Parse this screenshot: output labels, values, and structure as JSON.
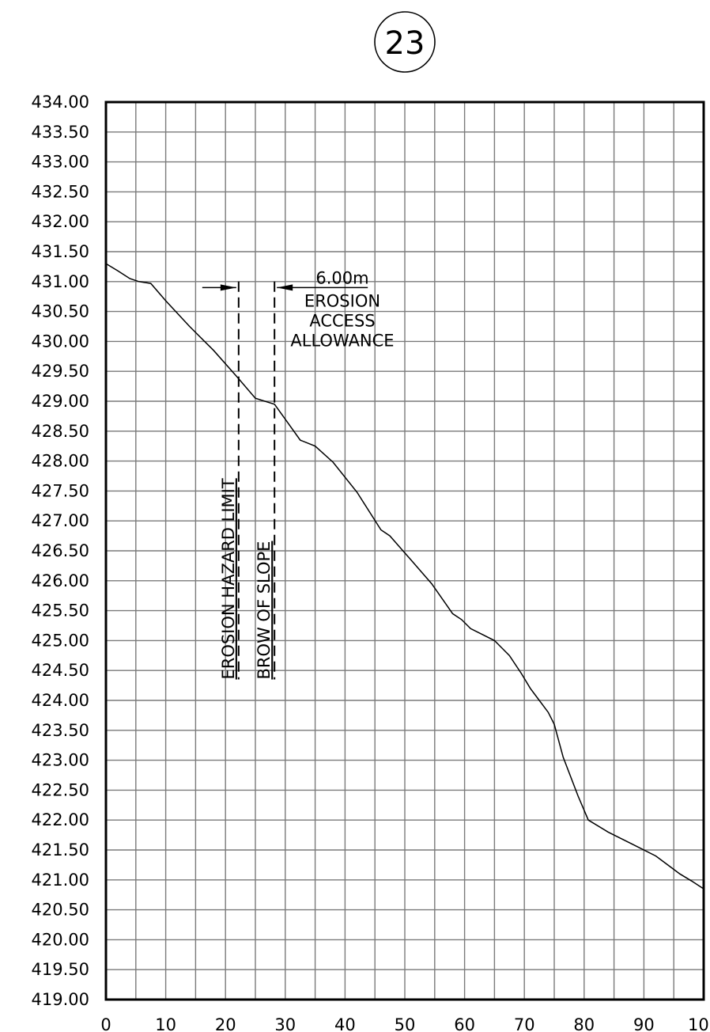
{
  "section_id": "23",
  "chart_data": {
    "type": "line",
    "title": "",
    "xlabel": "",
    "ylabel": "",
    "xlim": [
      0,
      100
    ],
    "ylim": [
      419.0,
      434.0
    ],
    "x_ticks": [
      0,
      10,
      20,
      30,
      40,
      50,
      60,
      70,
      80,
      90,
      100
    ],
    "x_tick_labels": [
      "0",
      "10",
      "20",
      "30",
      "40",
      "50",
      "60",
      "70",
      "80",
      "90",
      "100"
    ],
    "y_ticks": [
      419.0,
      419.5,
      420.0,
      420.5,
      421.0,
      421.5,
      422.0,
      422.5,
      423.0,
      423.5,
      424.0,
      424.5,
      425.0,
      425.5,
      426.0,
      426.5,
      427.0,
      427.5,
      428.0,
      428.5,
      429.0,
      429.5,
      430.0,
      430.5,
      431.0,
      431.5,
      432.0,
      432.5,
      433.0,
      433.5,
      434.0
    ],
    "y_tick_labels": [
      "419.00",
      "419.50",
      "420.00",
      "420.50",
      "421.00",
      "421.50",
      "422.00",
      "422.50",
      "423.00",
      "423.50",
      "424.00",
      "424.50",
      "425.00",
      "425.50",
      "426.00",
      "426.50",
      "427.00",
      "427.50",
      "428.00",
      "428.50",
      "429.00",
      "429.50",
      "430.00",
      "430.50",
      "431.00",
      "431.50",
      "432.00",
      "432.50",
      "433.00",
      "433.50",
      "434.00"
    ],
    "grid": true,
    "grid_step_x": 5,
    "grid_step_y": 0.5,
    "series": [
      {
        "x": [
          0,
          2,
          4,
          5.5,
          7.5,
          10,
          14,
          18,
          22,
          25,
          28.2,
          30,
          32.5,
          35,
          38,
          42,
          46,
          47.5,
          51,
          54.5,
          58,
          59.5,
          61,
          63,
          65,
          67.5,
          69.5,
          71,
          72.5,
          74,
          75,
          76.5,
          79,
          80.7,
          84,
          88,
          92,
          94,
          96,
          98,
          100
        ],
        "y": [
          431.3,
          431.18,
          431.05,
          431.0,
          430.97,
          430.68,
          430.25,
          429.85,
          429.4,
          429.05,
          428.95,
          428.7,
          428.35,
          428.25,
          427.98,
          427.48,
          426.85,
          426.75,
          426.35,
          425.95,
          425.45,
          425.35,
          425.2,
          425.1,
          425.0,
          424.75,
          424.45,
          424.2,
          424.0,
          423.8,
          423.6,
          423.05,
          422.4,
          422.0,
          421.8,
          421.6,
          421.4,
          421.25,
          421.1,
          420.98,
          420.85
        ]
      }
    ],
    "annotations": {
      "erosion_hazard_limit": {
        "x": 22.2,
        "label": "EROSION HAZARD LIMIT",
        "y_top": 431.0,
        "y_bottom": 424.35
      },
      "brow_of_slope": {
        "x": 28.2,
        "label": "BROW OF SLOPE",
        "y_top": 431.0,
        "y_bottom": 424.35
      },
      "allowance": {
        "y": 430.9,
        "distance": "6.00m",
        "label_lines": [
          "EROSION",
          "ACCESS",
          "ALLOWANCE"
        ]
      }
    }
  }
}
